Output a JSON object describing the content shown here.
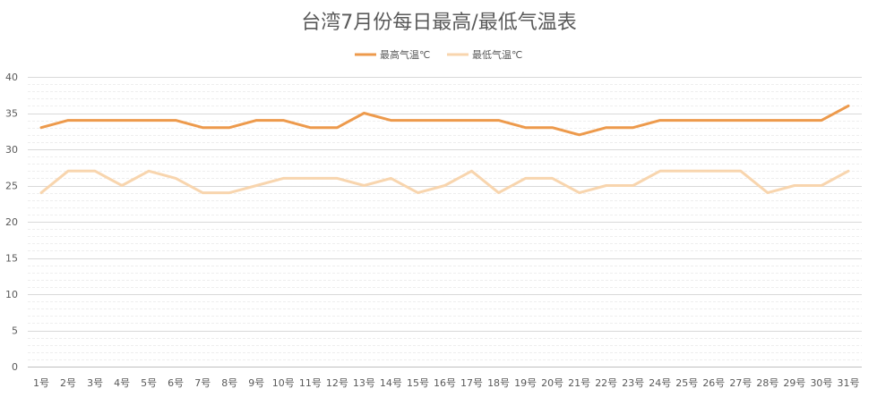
{
  "chart_data": {
    "type": "line",
    "title": "台湾7月份每日最高/最低气温表",
    "xlabel": "",
    "ylabel": "",
    "ylim": [
      0,
      40
    ],
    "yticks": [
      "0",
      "5",
      "10",
      "15",
      "20",
      "25",
      "30",
      "35",
      "40"
    ],
    "grid": true,
    "legend_position": "top",
    "categories": [
      "1号",
      "2号",
      "3号",
      "4号",
      "5号",
      "6号",
      "7号",
      "8号",
      "9号",
      "10号",
      "11号",
      "12号",
      "13号",
      "14号",
      "15号",
      "16号",
      "17号",
      "18号",
      "19号",
      "20号",
      "21号",
      "22号",
      "23号",
      "24号",
      "25号",
      "26号",
      "27号",
      "28号",
      "29号",
      "30号",
      "31号"
    ],
    "series": [
      {
        "name": "最高气温℃",
        "color": "#ED9A4C",
        "values": [
          33,
          34,
          34,
          34,
          34,
          34,
          33,
          33,
          34,
          34,
          33,
          33,
          35,
          34,
          34,
          34,
          34,
          34,
          33,
          33,
          32,
          33,
          33,
          34,
          34,
          34,
          34,
          34,
          34,
          34,
          36
        ]
      },
      {
        "name": "最低气温℃",
        "color": "#F8D5AE",
        "values": [
          24,
          27,
          27,
          25,
          27,
          26,
          24,
          24,
          25,
          26,
          26,
          26,
          25,
          26,
          24,
          25,
          27,
          24,
          26,
          26,
          24,
          25,
          25,
          27,
          27,
          27,
          27,
          24,
          25,
          25,
          27
        ]
      }
    ]
  }
}
